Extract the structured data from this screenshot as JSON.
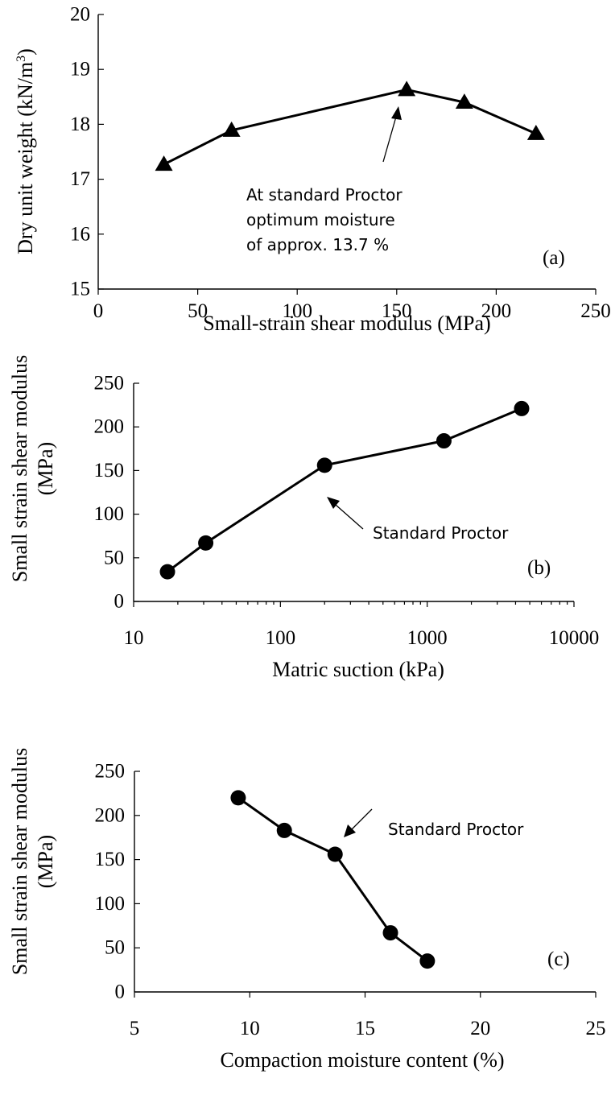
{
  "chart_data": [
    {
      "type": "line",
      "panel_label": "(a)",
      "marker": "triangle",
      "xlabel": "Small-strain shear modulus (MPa)",
      "ylabel": "Dry unit weight (kN/m",
      "ylabel_sup": "3",
      "ylabel_tail": ")",
      "xlim": [
        0,
        250
      ],
      "ylim": [
        15,
        20
      ],
      "x_ticks": [
        0,
        50,
        100,
        150,
        200,
        250
      ],
      "y_ticks": [
        15,
        16,
        17,
        18,
        19,
        20
      ],
      "series": [
        {
          "x": [
            33,
            67,
            155,
            184,
            220
          ],
          "y": [
            17.27,
            17.89,
            18.63,
            18.4,
            17.83
          ]
        }
      ],
      "annotation_lines": [
        "At standard Proctor",
        "optimum moisture",
        "of approx. 13.7 %"
      ],
      "annotation_target": {
        "x": 155,
        "y": 18.63
      }
    },
    {
      "type": "line",
      "panel_label": "(b)",
      "marker": "circle",
      "xscale": "log",
      "xlabel": "Matric suction (kPa)",
      "ylabel": "Small strain shear modulus",
      "ylabel2": "(MPa)",
      "xlim": [
        10,
        10000
      ],
      "ylim": [
        0,
        250
      ],
      "x_ticks": [
        10,
        100,
        1000,
        10000
      ],
      "y_ticks": [
        0,
        50,
        100,
        150,
        200,
        250
      ],
      "series": [
        {
          "x": [
            17,
            31,
            200,
            1300,
            4400
          ],
          "y": [
            34,
            67,
            156,
            184,
            221
          ]
        }
      ],
      "annotation_lines": [
        "Standard Proctor"
      ],
      "annotation_target": {
        "x": 200,
        "y": 156
      }
    },
    {
      "type": "line",
      "panel_label": "(c)",
      "marker": "circle",
      "xlabel": "Compaction moisture content (%)",
      "ylabel": "Small strain shear modulus",
      "ylabel2": "(MPa)",
      "xlim": [
        5,
        25
      ],
      "ylim": [
        0,
        250
      ],
      "x_ticks": [
        5,
        10,
        15,
        20,
        25
      ],
      "y_ticks": [
        0,
        50,
        100,
        150,
        200,
        250
      ],
      "series": [
        {
          "x": [
            9.5,
            11.5,
            13.7,
            16.1,
            17.7
          ],
          "y": [
            220,
            183,
            156,
            67,
            35
          ]
        }
      ],
      "annotation_lines": [
        "Standard Proctor"
      ],
      "annotation_target": {
        "x": 13.7,
        "y": 156
      }
    }
  ]
}
